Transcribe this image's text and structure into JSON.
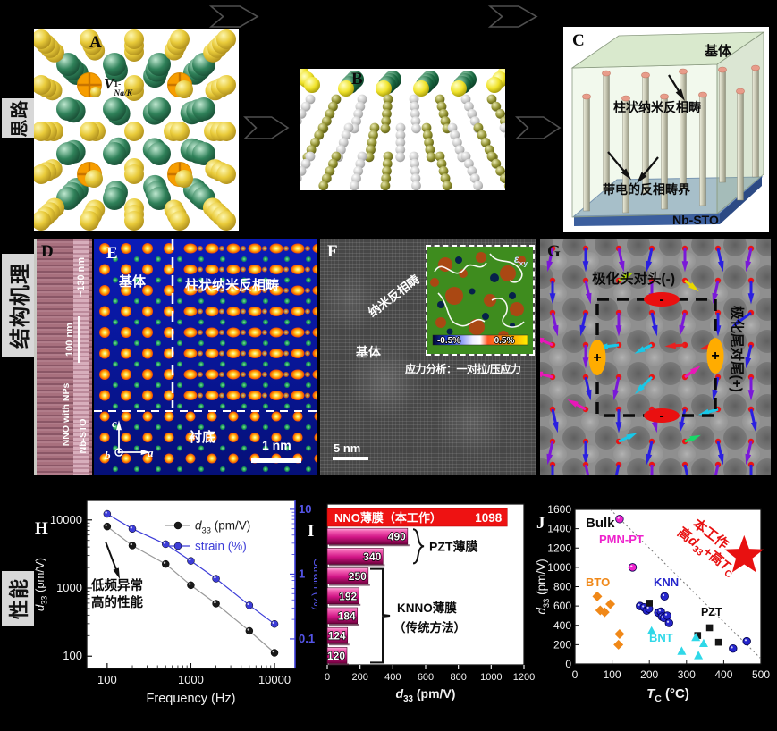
{
  "sections": {
    "row1": "思路",
    "row2": "结构机理",
    "row3": "性能"
  },
  "panelA": {
    "letter": "A",
    "vacancy_base": "V",
    "vacancy_sup": "1-",
    "vacancy_sub": "Na/K"
  },
  "panelB": {
    "letter": "B"
  },
  "panelC": {
    "letter": "C",
    "matrix": "基体",
    "pillars": "柱状纳米反相畴",
    "boundary": "带电的反相畴界",
    "substrate": "Nb-STO"
  },
  "panelD": {
    "letter": "D",
    "thickness": "~130 nm",
    "scalebar": "100 nm",
    "film": "NNO with NPs",
    "substrate": "Nb-STO"
  },
  "panelE": {
    "letter": "E",
    "matrix": "基体",
    "pillars": "柱状纳米反相畴",
    "substrate": "衬底",
    "axis_a": "a",
    "axis_b": "b",
    "axis_c": "c",
    "scalebar": "1 nm"
  },
  "panelF": {
    "letter": "F",
    "domain": "纳米反相畴",
    "matrix": "基体",
    "scalebar": "5 nm",
    "strain_sym": "ε",
    "strain_sub": "xy",
    "cb_min": "-0.5%",
    "cb_max": "0.5%",
    "caption": "应力分析：一对拉/压应力"
  },
  "panelG": {
    "letter": "G",
    "head": "极化头对头(-)",
    "tail": "极化尾对尾(+)",
    "minus": "-",
    "plus": "+"
  },
  "panelH": {
    "letter": "H"
  },
  "panelI": {
    "letter": "I"
  },
  "panelJ": {
    "letter": "J"
  },
  "chart_data": [
    {
      "id": "H",
      "type": "line",
      "xscale": "log",
      "yscale": "log",
      "xlabel": "Frequency (Hz)",
      "ylabel_left_parts": [
        {
          "t": "d",
          "i": true
        },
        {
          "t": "33",
          "sub": true
        },
        {
          "t": " (pm/V)"
        }
      ],
      "ylabel_right": "Strain (%)",
      "x": [
        100,
        200,
        500,
        1000,
        2000,
        5000,
        10000
      ],
      "series": [
        {
          "name_parts": [
            {
              "t": "d",
              "i": true
            },
            {
              "t": "33",
              "sub": true
            },
            {
              "t": " (pm/V)"
            }
          ],
          "axis": "left",
          "color": "#1a1a1a",
          "line_color": "#999999",
          "values": [
            8000,
            4200,
            2250,
            1100,
            590,
            235,
            112
          ]
        },
        {
          "name_parts": [
            {
              "t": "strain (%)"
            }
          ],
          "axis": "right",
          "color": "#3c3cd8",
          "line_color": "#3c3cd8",
          "values": [
            8.5,
            5.0,
            2.9,
            1.6,
            0.85,
            0.33,
            0.17
          ]
        }
      ],
      "xlim": [
        57,
        17600
      ],
      "xticks": [
        100,
        1000,
        10000
      ],
      "ylim_left": [
        66,
        19300
      ],
      "yticks_left": [
        100,
        1000,
        10000
      ],
      "ylim_right": [
        0.035,
        13.7
      ],
      "yticks_right": [
        10,
        1,
        0.1
      ],
      "annotation": [
        "低频异常",
        "高的性能"
      ]
    },
    {
      "id": "I",
      "type": "bar",
      "xlabel_parts": [
        {
          "t": "d",
          "i": true
        },
        {
          "t": "33",
          "sub": true
        },
        {
          "t": " (pm/V)"
        }
      ],
      "xlim": [
        0,
        1200
      ],
      "xticks": [
        0,
        200,
        400,
        600,
        800,
        1000,
        1200
      ],
      "highlight_bar": {
        "label": "NNO薄膜（本工作）",
        "value": 1098,
        "color": "#ee1212"
      },
      "bars": [
        490,
        340,
        250,
        192,
        184,
        124,
        120
      ],
      "bar_gradient": [
        "#ffb0dd",
        "#f25fb2",
        "#d11586",
        "#6e003c"
      ],
      "groups": [
        {
          "lines": [
            "PZT薄膜"
          ],
          "from": 0,
          "to": 1
        },
        {
          "lines": [
            "KNNO薄膜",
            "（传统方法）"
          ],
          "from": 2,
          "to": 6
        }
      ]
    },
    {
      "id": "J",
      "type": "scatter",
      "xlabel_parts": [
        {
          "t": "T",
          "i": true
        },
        {
          "t": "C",
          "sub": true
        },
        {
          "t": " (°C)"
        }
      ],
      "ylabel_parts": [
        {
          "t": "d",
          "i": true
        },
        {
          "t": "33",
          "sub": true
        },
        {
          "t": " (pm/V)"
        }
      ],
      "xlim": [
        0,
        500
      ],
      "ylim": [
        0,
        1600
      ],
      "xticks": [
        0,
        100,
        200,
        300,
        400,
        500
      ],
      "yticks": [
        0,
        200,
        400,
        600,
        800,
        1000,
        1200,
        1400,
        1600
      ],
      "bulk_label": "Bulk",
      "trend_line": {
        "x1": 95,
        "y1": 1600,
        "x2": 500,
        "y2": 55
      },
      "series": [
        {
          "name": "PMN-PT",
          "marker": "circle",
          "color": "#ee22cc",
          "points": [
            [
              120,
              1500
            ],
            [
              155,
              1000
            ]
          ]
        },
        {
          "name": "BTO",
          "marker": "diamond",
          "color": "#f08818",
          "points": [
            [
              60,
              700
            ],
            [
              68,
              555
            ],
            [
              80,
              535
            ],
            [
              95,
              620
            ],
            [
              120,
              310
            ],
            [
              117,
              200
            ]
          ]
        },
        {
          "name": "KNN",
          "marker": "circle",
          "color": "#2525cc",
          "points": [
            [
              175,
              600
            ],
            [
              186,
              585
            ],
            [
              193,
              553
            ],
            [
              199,
              572
            ],
            [
              224,
              532
            ],
            [
              231,
              541
            ],
            [
              234,
              490
            ],
            [
              239,
              478
            ],
            [
              241,
              700
            ],
            [
              248,
              500
            ],
            [
              253,
              425
            ],
            [
              425,
              160
            ],
            [
              462,
              235
            ]
          ]
        },
        {
          "name": "PZT",
          "marker": "square",
          "color": "#151515",
          "points": [
            [
              200,
              630
            ],
            [
              330,
              295
            ],
            [
              362,
              375
            ],
            [
              386,
              225
            ]
          ]
        },
        {
          "name": "BNT",
          "marker": "triangle",
          "color": "#2fd8e8",
          "points": [
            [
              206,
              345
            ],
            [
              287,
              135
            ],
            [
              325,
              278
            ],
            [
              332,
              90
            ],
            [
              346,
              215
            ]
          ]
        }
      ],
      "star": {
        "tc": 455,
        "d33": 1120,
        "color": "#e81111",
        "label1": "本工作",
        "label2_parts": [
          {
            "t": "高"
          },
          {
            "t": "d",
            "i": true
          },
          {
            "t": "33",
            "sub": true
          },
          {
            "t": "+高"
          },
          {
            "t": "T",
            "i": true
          },
          {
            "t": "C",
            "sub": true
          }
        ]
      }
    }
  ]
}
